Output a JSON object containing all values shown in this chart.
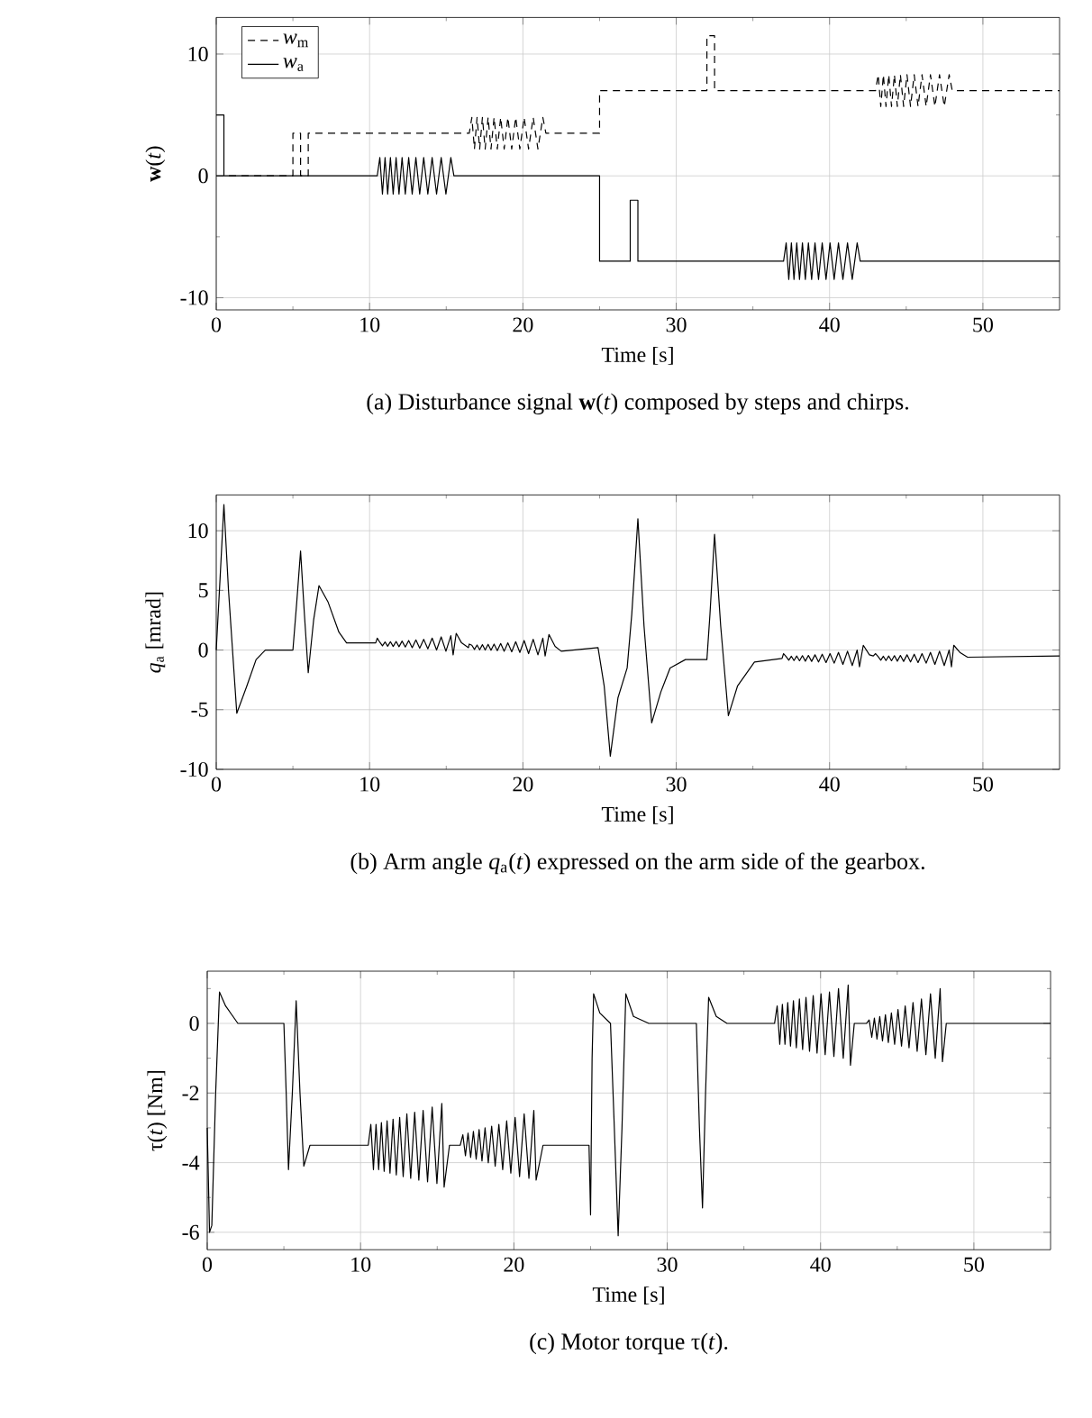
{
  "chart_data": [
    {
      "type": "line",
      "xlabel": "Time [s]",
      "ylabel": "**w**(*t*)",
      "xlim": [
        0,
        55
      ],
      "ylim": [
        -11,
        13
      ],
      "xticks": [
        0,
        {
          "value": 5,
          "label": null
        },
        10,
        {
          "value": 15,
          "label": null
        },
        20,
        {
          "value": 25,
          "label": null
        },
        30,
        {
          "value": 35,
          "label": null
        },
        40,
        {
          "value": 45,
          "label": null
        },
        50
      ],
      "yticks": [
        -10,
        {
          "value": -5,
          "label": null
        },
        0,
        {
          "value": 5,
          "label": null
        },
        10
      ],
      "grid": true,
      "legend": "top left",
      "annotations": [
        "(a) Disturbance signal **w**(*t*) composed by steps and chirps."
      ],
      "series": [
        {
          "name": "*w*$_{m}$",
          "color": "#000000",
          "line_style": "dashed",
          "x": [
            0,
            5,
            5,
            5.5,
            5.5,
            6,
            6,
            16.5,
            16.67,
            16.84,
            17.01,
            17.18,
            17.36,
            17.54,
            17.73,
            17.92,
            18.12,
            18.33,
            18.55,
            18.78,
            19.02,
            19.27,
            19.53,
            19.8,
            20.08,
            20.37,
            20.67,
            20.98,
            21.3,
            21.5,
            25,
            25,
            32,
            32,
            32.5,
            32.5,
            43,
            43.17,
            43.34,
            43.51,
            43.68,
            43.86,
            44.04,
            44.23,
            44.42,
            44.62,
            44.83,
            45.05,
            45.28,
            45.52,
            45.77,
            46.03,
            46.3,
            46.58,
            46.87,
            47.17,
            47.48,
            47.8,
            48,
            55
          ],
          "values": [
            0,
            0,
            3.5,
            3.5,
            0,
            0,
            3.5,
            3.5,
            4.8,
            2.2,
            4.8,
            2.2,
            4.8,
            2.2,
            4.8,
            2.2,
            4.8,
            2.2,
            4.8,
            2.2,
            4.8,
            2.2,
            4.8,
            2.2,
            4.8,
            2.2,
            4.8,
            2.2,
            4.8,
            3.5,
            3.5,
            7,
            7,
            11.5,
            11.5,
            7,
            7,
            8.3,
            5.7,
            8.3,
            5.7,
            8.3,
            5.7,
            8.3,
            5.7,
            8.3,
            5.7,
            8.3,
            5.7,
            8.3,
            5.7,
            8.3,
            5.7,
            8.3,
            5.7,
            8.3,
            5.7,
            8.3,
            7,
            7
          ]
        },
        {
          "name": "*w*$_{a}$",
          "color": "#000000",
          "line_style": "solid",
          "x": [
            0,
            0.5,
            0.5,
            10.5,
            10.67,
            10.84,
            11.01,
            11.18,
            11.36,
            11.54,
            11.73,
            11.92,
            12.12,
            12.33,
            12.55,
            12.78,
            13.02,
            13.27,
            13.53,
            13.8,
            14.08,
            14.37,
            14.67,
            14.98,
            15.3,
            15.5,
            25,
            25,
            27,
            27,
            27.5,
            27.5,
            37,
            37.17,
            37.34,
            37.51,
            37.68,
            37.86,
            38.04,
            38.23,
            38.42,
            38.62,
            38.83,
            39.05,
            39.28,
            39.52,
            39.77,
            40.03,
            40.3,
            40.58,
            40.87,
            41.17,
            41.48,
            41.8,
            42,
            55
          ],
          "values": [
            5,
            5,
            0,
            0,
            1.5,
            -1.5,
            1.5,
            -1.5,
            1.5,
            -1.5,
            1.5,
            -1.5,
            1.5,
            -1.5,
            1.5,
            -1.5,
            1.5,
            -1.5,
            1.5,
            -1.5,
            1.5,
            -1.5,
            1.5,
            -1.5,
            1.5,
            0,
            0,
            -7,
            -7,
            -2,
            -2,
            -7,
            -7,
            -5.5,
            -8.5,
            -5.5,
            -8.5,
            -5.5,
            -8.5,
            -5.5,
            -8.5,
            -5.5,
            -8.5,
            -5.5,
            -8.5,
            -5.5,
            -8.5,
            -5.5,
            -8.5,
            -5.5,
            -8.5,
            -5.5,
            -8.5,
            -5.5,
            -7,
            -7
          ]
        }
      ]
    },
    {
      "type": "line",
      "xlabel": "Time [s]",
      "ylabel": "*q*$_{a}$ [mrad]",
      "xlim": [
        0,
        55
      ],
      "ylim": [
        -10,
        13
      ],
      "xticks": [
        0,
        {
          "value": 5,
          "label": null
        },
        10,
        {
          "value": 15,
          "label": null
        },
        20,
        {
          "value": 25,
          "label": null
        },
        30,
        {
          "value": 35,
          "label": null
        },
        40,
        {
          "value": 45,
          "label": null
        },
        50
      ],
      "yticks": [
        -10,
        -5,
        0,
        5,
        10
      ],
      "grid": true,
      "annotations": [
        "(b) Arm angle *q*$_{a}$(*t*) expressed on the arm side of the gearbox."
      ],
      "series": [
        {
          "color": "#000000",
          "line_style": "solid",
          "x": [
            0,
            0.25,
            0.5,
            0.8,
            1.34,
            2.0,
            2.6,
            3.2,
            5.0,
            5.25,
            5.5,
            5.75,
            6.0,
            6.35,
            6.7,
            7.3,
            8.0,
            8.5,
            10.4,
            10.5,
            10.67,
            10.84,
            11.01,
            11.18,
            11.36,
            11.54,
            11.73,
            11.92,
            12.12,
            12.33,
            12.55,
            12.78,
            13.02,
            13.27,
            13.53,
            13.8,
            14.08,
            14.37,
            14.67,
            14.98,
            15.3,
            15.45,
            15.65,
            16.0,
            16.45,
            16.5,
            16.67,
            16.84,
            17.01,
            17.18,
            17.36,
            17.54,
            17.73,
            17.92,
            18.12,
            18.33,
            18.55,
            18.78,
            19.02,
            19.27,
            19.53,
            19.8,
            20.08,
            20.37,
            20.67,
            20.98,
            21.3,
            21.45,
            21.7,
            22.1,
            22.5,
            24.9,
            25.3,
            25.7,
            26.2,
            26.8,
            27.1,
            27.5,
            27.9,
            28.4,
            29.0,
            29.6,
            30.6,
            32.0,
            32.2,
            32.5,
            32.9,
            33.4,
            34.0,
            35.1,
            36.9,
            37,
            37.17,
            37.34,
            37.51,
            37.68,
            37.86,
            38.04,
            38.23,
            38.42,
            38.62,
            38.83,
            39.05,
            39.28,
            39.52,
            39.77,
            40.03,
            40.3,
            40.58,
            40.87,
            41.17,
            41.48,
            41.8,
            41.95,
            42.2,
            42.6,
            42.85,
            43,
            43.17,
            43.34,
            43.51,
            43.68,
            43.86,
            44.04,
            44.23,
            44.42,
            44.62,
            44.83,
            45.05,
            45.28,
            45.52,
            45.77,
            46.03,
            46.3,
            46.58,
            46.87,
            47.17,
            47.48,
            47.8,
            47.95,
            48.1,
            48.5,
            49.0,
            55
          ],
          "values": [
            0,
            6,
            12.2,
            5,
            -5.3,
            -3,
            -0.8,
            0,
            0,
            4,
            8.3,
            3,
            -1.9,
            2.5,
            5.4,
            4,
            1.5,
            0.6,
            0.6,
            1.0,
            0.65,
            0.35,
            0.68,
            0.32,
            0.7,
            0.3,
            0.72,
            0.28,
            0.75,
            0.25,
            0.8,
            0.2,
            0.85,
            0.15,
            0.9,
            0.1,
            1.0,
            0.0,
            1.1,
            -0.1,
            1.2,
            -0.4,
            1.4,
            0.6,
            0.2,
            0.5,
            0.4,
            0.05,
            0.42,
            0.02,
            0.45,
            0.0,
            0.48,
            -0.02,
            0.5,
            -0.05,
            0.55,
            -0.1,
            0.6,
            -0.15,
            0.7,
            -0.2,
            0.8,
            -0.3,
            0.9,
            -0.4,
            1.0,
            -0.5,
            1.3,
            0.3,
            -0.1,
            0.2,
            -3,
            -8.9,
            -4,
            -1.5,
            3,
            11.0,
            2,
            -6.1,
            -3.5,
            -1.5,
            -0.8,
            -0.8,
            3,
            9.7,
            2,
            -5.5,
            -3,
            -1.0,
            -0.7,
            -0.3,
            -0.55,
            -0.85,
            -0.52,
            -0.88,
            -0.5,
            -0.9,
            -0.47,
            -0.93,
            -0.45,
            -0.95,
            -0.4,
            -1.0,
            -0.35,
            -1.05,
            -0.3,
            -1.1,
            -0.2,
            -1.2,
            -0.1,
            -1.3,
            0.0,
            -1.4,
            0.4,
            -0.4,
            -0.5,
            -0.3,
            -0.55,
            -0.85,
            -0.52,
            -0.88,
            -0.5,
            -0.9,
            -0.47,
            -0.93,
            -0.45,
            -0.95,
            -0.4,
            -1.0,
            -0.35,
            -1.05,
            -0.3,
            -1.1,
            -0.2,
            -1.2,
            -0.1,
            -1.3,
            0.0,
            -1.4,
            0.4,
            -0.2,
            -0.6,
            -0.5
          ]
        }
      ]
    },
    {
      "type": "line",
      "xlabel": "Time [s]",
      "ylabel": "τ(*t*) [Nm]",
      "xlim": [
        0,
        55
      ],
      "ylim": [
        -6.5,
        1.5
      ],
      "xticks": [
        0,
        {
          "value": 5,
          "label": null
        },
        10,
        {
          "value": 15,
          "label": null
        },
        20,
        {
          "value": 25,
          "label": null
        },
        30,
        {
          "value": 35,
          "label": null
        },
        40,
        {
          "value": 45,
          "label": null
        },
        50
      ],
      "yticks": [
        -6,
        {
          "value": -5,
          "label": null
        },
        -4,
        {
          "value": -3,
          "label": null
        },
        -2,
        {
          "value": -1,
          "label": null
        },
        0,
        {
          "value": 1,
          "label": null
        }
      ],
      "grid": true,
      "annotations": [
        "(c) Motor torque τ(*t*)."
      ],
      "series": [
        {
          "color": "#000000",
          "line_style": "solid",
          "x": [
            0,
            0.15,
            0.3,
            0.55,
            0.8,
            1.2,
            2.0,
            5.0,
            5.15,
            5.3,
            5.55,
            5.8,
            6.05,
            6.3,
            6.7,
            10.4,
            10.5,
            10.67,
            10.84,
            11.01,
            11.18,
            11.36,
            11.54,
            11.73,
            11.92,
            12.12,
            12.33,
            12.55,
            12.78,
            13.02,
            13.27,
            13.53,
            13.8,
            14.08,
            14.37,
            14.67,
            14.98,
            15.3,
            15.45,
            15.8,
            16.4,
            16.5,
            16.67,
            16.84,
            17.01,
            17.18,
            17.36,
            17.54,
            17.73,
            17.92,
            18.12,
            18.33,
            18.55,
            18.78,
            19.02,
            19.27,
            19.53,
            19.8,
            20.08,
            20.37,
            20.67,
            20.98,
            21.3,
            21.45,
            21.9,
            24.9,
            25.0,
            25.1,
            25.2,
            25.6,
            26.3,
            26.55,
            26.8,
            27.05,
            27.3,
            27.8,
            28.8,
            31.9,
            32.1,
            32.3,
            32.5,
            32.7,
            33.2,
            33.9,
            36.9,
            37,
            37.17,
            37.34,
            37.51,
            37.68,
            37.86,
            38.04,
            38.23,
            38.42,
            38.62,
            38.83,
            39.05,
            39.28,
            39.52,
            39.77,
            40.03,
            40.3,
            40.58,
            40.87,
            41.17,
            41.48,
            41.8,
            41.95,
            42.2,
            42.9,
            43,
            43.17,
            43.34,
            43.51,
            43.68,
            43.86,
            44.04,
            44.23,
            44.42,
            44.62,
            44.83,
            45.05,
            45.28,
            45.52,
            45.77,
            46.03,
            46.3,
            46.58,
            46.87,
            47.17,
            47.48,
            47.8,
            47.95,
            48.2,
            55
          ],
          "values": [
            -3,
            -6.0,
            -5.8,
            -2,
            0.9,
            0.5,
            0,
            0,
            -2,
            -4.2,
            -2,
            0.65,
            -2,
            -4.1,
            -3.5,
            -3.5,
            -3.5,
            -2.9,
            -4.2,
            -2.9,
            -4.2,
            -2.85,
            -4.25,
            -2.8,
            -4.3,
            -2.75,
            -4.35,
            -2.7,
            -4.4,
            -2.6,
            -4.45,
            -2.55,
            -4.5,
            -2.5,
            -4.55,
            -2.4,
            -4.6,
            -2.3,
            -4.7,
            -3.5,
            -3.5,
            -3.5,
            -3.2,
            -3.8,
            -3.15,
            -3.85,
            -3.1,
            -3.9,
            -3.05,
            -3.95,
            -3.0,
            -4.0,
            -2.95,
            -4.1,
            -2.9,
            -4.2,
            -2.8,
            -4.3,
            -2.7,
            -4.4,
            -2.6,
            -4.45,
            -2.5,
            -4.5,
            -3.5,
            -3.5,
            -5.5,
            -1,
            0.85,
            0.3,
            0,
            -3,
            -6.1,
            -3,
            0.85,
            0.2,
            0,
            0,
            -3,
            -5.3,
            -2,
            0.75,
            0.2,
            0,
            0,
            0,
            0.5,
            -0.6,
            0.55,
            -0.6,
            0.6,
            -0.65,
            0.65,
            -0.7,
            0.7,
            -0.75,
            0.75,
            -0.8,
            0.8,
            -0.85,
            0.85,
            -0.9,
            0.9,
            -0.95,
            1.0,
            -1.0,
            1.1,
            -1.2,
            0,
            0,
            0,
            0.1,
            -0.4,
            0.15,
            -0.45,
            0.2,
            -0.5,
            0.25,
            -0.55,
            0.3,
            -0.6,
            0.4,
            -0.65,
            0.5,
            -0.7,
            0.6,
            -0.8,
            0.7,
            -0.9,
            0.85,
            -1.0,
            1.0,
            -1.1,
            0,
            0
          ]
        }
      ]
    }
  ]
}
